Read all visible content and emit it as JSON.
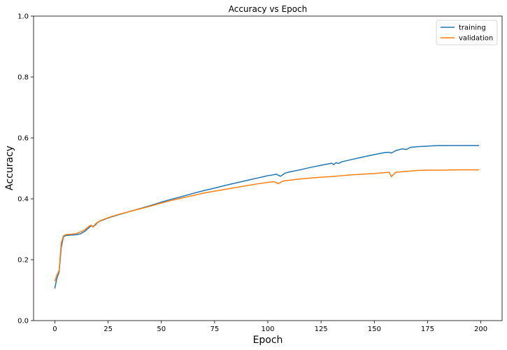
{
  "chart_data": {
    "type": "line",
    "title": "Accuracy vs Epoch",
    "xlabel": "Epoch",
    "ylabel": "Accuracy",
    "xlim": [
      -10,
      210
    ],
    "ylim": [
      0.0,
      1.0
    ],
    "xticks": [
      0,
      25,
      50,
      75,
      100,
      125,
      150,
      175,
      200
    ],
    "yticks": [
      0.0,
      0.2,
      0.4,
      0.6,
      0.8,
      1.0
    ],
    "xtick_labels": [
      "0",
      "25",
      "50",
      "75",
      "100",
      "125",
      "150",
      "175",
      "200"
    ],
    "ytick_labels": [
      "0.0",
      "0.2",
      "0.4",
      "0.6",
      "0.8",
      "1.0"
    ],
    "grid": false,
    "legend_position": "top-right",
    "series": [
      {
        "name": "training",
        "color": "#1f77b4",
        "x": [
          0,
          1,
          2,
          3,
          4,
          5,
          6,
          8,
          10,
          12,
          14,
          16,
          17,
          18,
          19,
          20,
          22,
          25,
          30,
          35,
          40,
          45,
          50,
          55,
          60,
          65,
          70,
          75,
          80,
          85,
          90,
          95,
          100,
          102,
          104,
          105,
          106,
          108,
          110,
          115,
          120,
          125,
          130,
          131,
          132,
          133,
          135,
          140,
          145,
          150,
          155,
          157,
          158,
          160,
          163,
          165,
          167,
          170,
          175,
          180,
          185,
          190,
          199
        ],
        "y": [
          0.107,
          0.14,
          0.16,
          0.24,
          0.275,
          0.279,
          0.28,
          0.281,
          0.282,
          0.285,
          0.293,
          0.305,
          0.311,
          0.31,
          0.314,
          0.322,
          0.329,
          0.337,
          0.348,
          0.358,
          0.368,
          0.378,
          0.389,
          0.399,
          0.408,
          0.418,
          0.427,
          0.435,
          0.444,
          0.452,
          0.46,
          0.468,
          0.476,
          0.478,
          0.481,
          0.477,
          0.474,
          0.484,
          0.488,
          0.495,
          0.503,
          0.51,
          0.517,
          0.512,
          0.519,
          0.516,
          0.522,
          0.53,
          0.538,
          0.545,
          0.552,
          0.553,
          0.55,
          0.558,
          0.564,
          0.562,
          0.569,
          0.571,
          0.573,
          0.575,
          0.575,
          0.575,
          0.575
        ]
      },
      {
        "name": "validation",
        "color": "#ff7f0e",
        "x": [
          0,
          1,
          2,
          3,
          4,
          5,
          6,
          8,
          10,
          12,
          14,
          16,
          17,
          18,
          19,
          20,
          22,
          25,
          30,
          35,
          40,
          45,
          50,
          55,
          60,
          65,
          70,
          75,
          80,
          85,
          90,
          95,
          100,
          103,
          105,
          107,
          110,
          115,
          120,
          125,
          130,
          135,
          140,
          145,
          150,
          155,
          157,
          158,
          160,
          165,
          170,
          175,
          180,
          190,
          199
        ],
        "y": [
          0.13,
          0.15,
          0.165,
          0.255,
          0.278,
          0.282,
          0.283,
          0.284,
          0.286,
          0.291,
          0.298,
          0.31,
          0.313,
          0.307,
          0.317,
          0.323,
          0.33,
          0.338,
          0.349,
          0.358,
          0.367,
          0.376,
          0.386,
          0.395,
          0.403,
          0.411,
          0.419,
          0.425,
          0.431,
          0.437,
          0.443,
          0.449,
          0.454,
          0.456,
          0.45,
          0.458,
          0.461,
          0.465,
          0.468,
          0.471,
          0.473,
          0.476,
          0.479,
          0.481,
          0.483,
          0.486,
          0.487,
          0.473,
          0.487,
          0.49,
          0.493,
          0.494,
          0.494,
          0.495,
          0.495
        ]
      }
    ]
  }
}
